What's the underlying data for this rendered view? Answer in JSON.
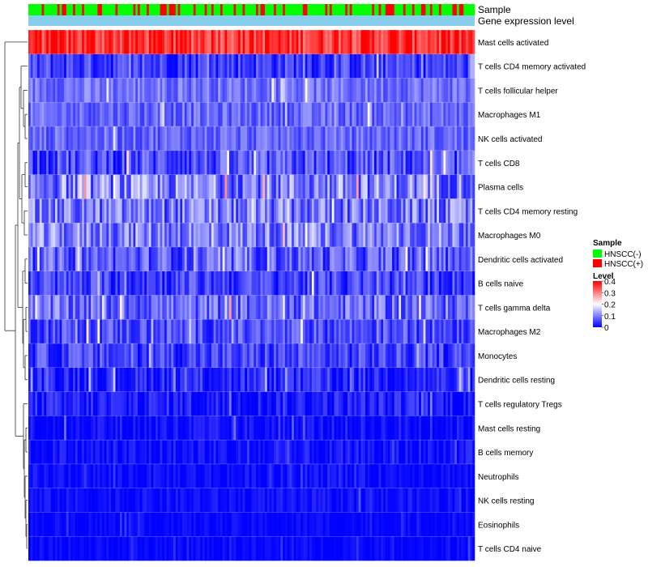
{
  "chart_data": {
    "type": "heatmap",
    "title": "",
    "n_samples": 200,
    "rows": [
      {
        "label": "Mast cells activated",
        "mean": 0.36,
        "spread": 0.06
      },
      {
        "label": "T cells CD4 memory activated",
        "mean": 0.05,
        "spread": 0.05
      },
      {
        "label": "T cells follicular helper",
        "mean": 0.09,
        "spread": 0.04
      },
      {
        "label": "Macrophages M1",
        "mean": 0.08,
        "spread": 0.04
      },
      {
        "label": "NK cells activated",
        "mean": 0.08,
        "spread": 0.04
      },
      {
        "label": "T cells CD8",
        "mean": 0.06,
        "spread": 0.06
      },
      {
        "label": "Plasma cells",
        "mean": 0.1,
        "spread": 0.08
      },
      {
        "label": "T cells CD4 memory resting",
        "mean": 0.09,
        "spread": 0.07
      },
      {
        "label": "Macrophages M0",
        "mean": 0.1,
        "spread": 0.07
      },
      {
        "label": "Dendritic cells activated",
        "mean": 0.07,
        "spread": 0.06
      },
      {
        "label": "B cells naive",
        "mean": 0.05,
        "spread": 0.05
      },
      {
        "label": "T cells gamma delta",
        "mean": 0.08,
        "spread": 0.06
      },
      {
        "label": "Macrophages M2",
        "mean": 0.06,
        "spread": 0.05
      },
      {
        "label": "Monocytes",
        "mean": 0.05,
        "spread": 0.05
      },
      {
        "label": "Dendritic cells resting",
        "mean": 0.03,
        "spread": 0.04
      },
      {
        "label": "T cells regulatory  Tregs",
        "mean": 0.02,
        "spread": 0.04
      },
      {
        "label": "Mast cells resting",
        "mean": 0.01,
        "spread": 0.03
      },
      {
        "label": "B cells memory",
        "mean": 0.01,
        "spread": 0.03
      },
      {
        "label": "Neutrophils",
        "mean": 0.01,
        "spread": 0.02
      },
      {
        "label": "NK cells resting",
        "mean": 0.01,
        "spread": 0.02
      },
      {
        "label": "Eosinophils",
        "mean": 0.005,
        "spread": 0.015
      },
      {
        "label": "T cells CD4 naive",
        "mean": 0.005,
        "spread": 0.015
      }
    ],
    "annotations": [
      {
        "label": "Sample",
        "colors": {
          "HNSCC(-)": "#00ff00",
          "HNSCC(+)": "#ff0000"
        },
        "fraction_positive": 0.3
      },
      {
        "label": "Gene expression level",
        "color": "#87ceeb"
      }
    ],
    "legend": {
      "sample": {
        "title": "Sample",
        "entries": [
          {
            "label": "HNSCC(-)",
            "color": "#00ff00"
          },
          {
            "label": "HNSCC(+)",
            "color": "#ff0000"
          }
        ]
      },
      "level": {
        "title": "Level",
        "ticks": [
          "0.4",
          "0.3",
          "0.2",
          "0.1",
          "0"
        ],
        "min": 0,
        "max": 0.4,
        "colors": {
          "low": "#0000ff",
          "mid": "#ffffff",
          "high": "#ff0000"
        }
      }
    },
    "value_range": [
      0,
      0.4
    ]
  }
}
